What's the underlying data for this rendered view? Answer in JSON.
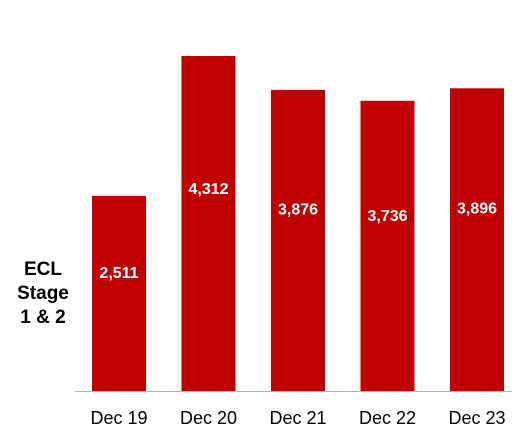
{
  "chart_data": {
    "type": "bar",
    "categories": [
      "Dec 19",
      "Dec 20",
      "Dec 21",
      "Dec 22",
      "Dec 23"
    ],
    "values": [
      2511,
      4312,
      3876,
      3736,
      3896
    ],
    "value_labels": [
      "2,511",
      "4,312",
      "3,876",
      "3,736",
      "3,896"
    ],
    "title": "",
    "xlabel": "",
    "ylabel_lines": [
      "ECL",
      "Stage",
      "1 & 2"
    ],
    "ylim": [
      0,
      4750
    ],
    "grid": false,
    "legend": "none",
    "bar_color": "#c00000",
    "label_color": "#ffffff",
    "axis_color": "#b0b0b0"
  }
}
